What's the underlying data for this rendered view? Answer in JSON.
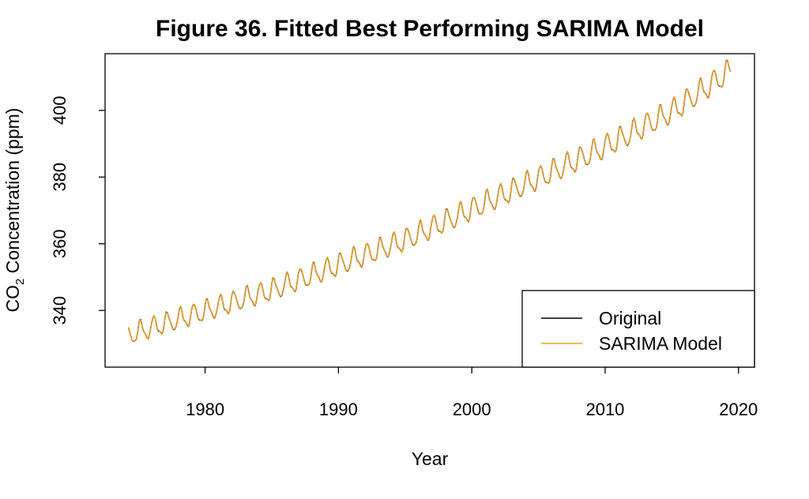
{
  "chart_data": {
    "type": "line",
    "title": "Figure 36. Fitted Best Performing SARIMA Model",
    "xlabel": "Year",
    "ylabel": {
      "prefix": "CO",
      "subscript": "2",
      "suffix": " Concentration (ppm)"
    },
    "xlim": [
      1972.5,
      2021.2
    ],
    "ylim": [
      323.0,
      417.0
    ],
    "x_ticks": [
      1980,
      1990,
      2000,
      2010,
      2020
    ],
    "x_tick_labels": [
      "1980",
      "1990",
      "2000",
      "2010",
      "2020"
    ],
    "y_ticks": [
      340,
      360,
      380,
      400
    ],
    "y_tick_labels": [
      "340",
      "360",
      "380",
      "400"
    ],
    "grid": false,
    "legend_position": "bottom-right",
    "x_start": 1974.25,
    "x_step": 0.0833333,
    "trend_points": [
      [
        1974.25,
        332.6
      ],
      [
        1985.0,
        346.0
      ],
      [
        1995.0,
        361.0
      ],
      [
        2005.0,
        379.5
      ],
      [
        2010.0,
        389.0
      ],
      [
        2015.0,
        399.5
      ],
      [
        2019.4,
        411.8
      ]
    ],
    "seasonal_amplitude_start": 2.9,
    "seasonal_amplitude_end": 3.4,
    "series": [
      {
        "name": "Original",
        "color": "#000000",
        "values": []
      },
      {
        "name": "SARIMA Model",
        "color": "#f0a020",
        "values": []
      }
    ]
  }
}
